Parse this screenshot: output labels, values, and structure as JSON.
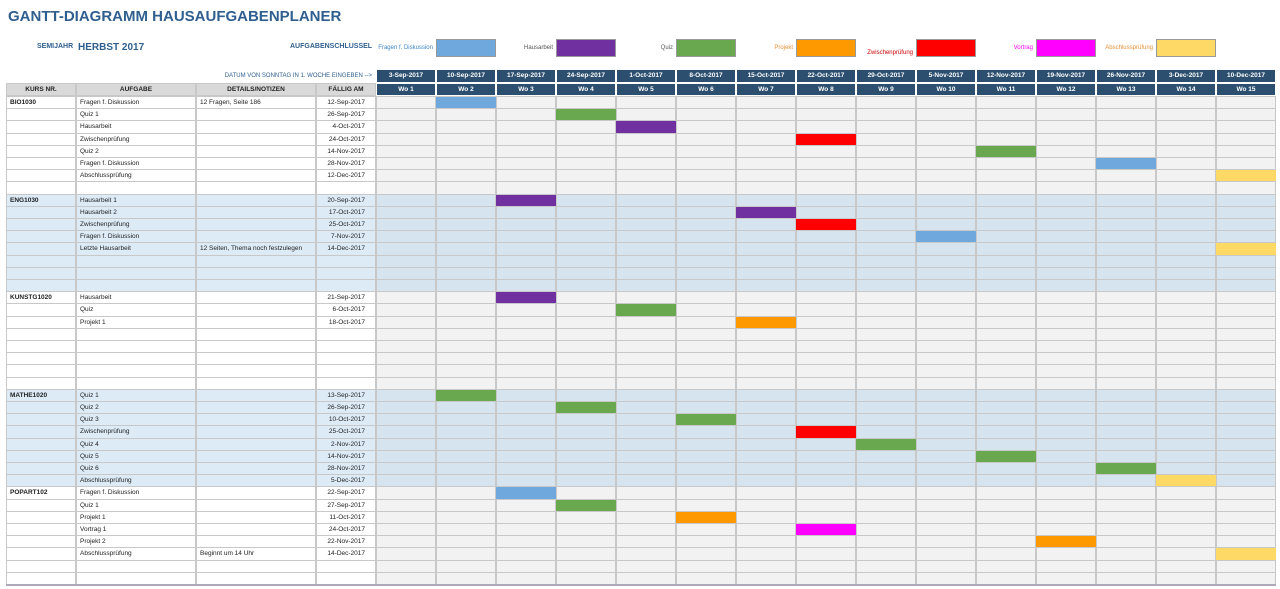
{
  "header": {
    "title": "GANTT-DIAGRAMM HAUSAUFGABENPLANER",
    "semester_label": "SEMIJAHR",
    "semester": "HERBST 2017",
    "key_label": "AUFGABENSCHLÜSSEL"
  },
  "legend": [
    {
      "label": "Fragen f. Diskussion",
      "color": "#6fa8dc",
      "text_color": "#3d85c6"
    },
    {
      "label": "Hausarbeit",
      "color": "#7030a0",
      "text_color": "#555555"
    },
    {
      "label": "Quiz",
      "color": "#6aa84f",
      "text_color": "#555555"
    },
    {
      "label": "Projekt",
      "color": "#ff9900",
      "text_color": "#e69138"
    },
    {
      "label": "Zwischenprüfung",
      "color": "#ff0000",
      "text_color": "#cc0000"
    },
    {
      "label": "Vortrag",
      "color": "#ff00ff",
      "text_color": "#ff00ff"
    },
    {
      "label": "Abschlussprüfung",
      "color": "#ffd966",
      "text_color": "#e69138"
    }
  ],
  "table": {
    "date_hint": "DATUM VON SONNTAG IN 1. WOCHE EINGEBEN -->",
    "columns": [
      "KURS NR.",
      "AUFGABE",
      "DETAILS/NOTIZEN",
      "FÄLLIG AM"
    ],
    "week_dates": [
      "3-Sep-2017",
      "10-Sep-2017",
      "17-Sep-2017",
      "24-Sep-2017",
      "1-Oct-2017",
      "8-Oct-2017",
      "15-Oct-2017",
      "22-Oct-2017",
      "29-Oct-2017",
      "5-Nov-2017",
      "12-Nov-2017",
      "19-Nov-2017",
      "26-Nov-2017",
      "3-Dec-2017",
      "10-Dec-2017"
    ],
    "week_labels": [
      "Wo 1",
      "Wo 2",
      "Wo 3",
      "Wo 4",
      "Wo 5",
      "Wo 6",
      "Wo 7",
      "Wo 8",
      "Wo 9",
      "Wo 10",
      "Wo 11",
      "Wo 12",
      "Wo 13",
      "Wo 14",
      "Wo 15"
    ],
    "courses": [
      {
        "code": "BIO1030",
        "tasks": [
          {
            "task": "Fragen f. Diskussion",
            "details": "12 Fragen, Seite 186",
            "due": "12-Sep-2017",
            "week": 2,
            "type": 0
          },
          {
            "task": "Quiz 1",
            "due": "26-Sep-2017",
            "week": 4,
            "type": 2
          },
          {
            "task": "Hausarbeit",
            "due": "4-Oct-2017",
            "week": 5,
            "type": 1
          },
          {
            "task": "Zwischenprüfung",
            "due": "24-Oct-2017",
            "week": 8,
            "type": 4
          },
          {
            "task": "Quiz 2",
            "due": "14-Nov-2017",
            "week": 11,
            "type": 2
          },
          {
            "task": "Fragen f. Diskussion",
            "due": "28-Nov-2017",
            "week": 13,
            "type": 0
          },
          {
            "task": "Abschlussprüfung",
            "due": "12-Dec-2017",
            "week": 15,
            "type": 6
          }
        ]
      },
      {
        "code": "ENG1030",
        "tasks": [
          {
            "task": "Hausarbeit 1",
            "due": "20-Sep-2017",
            "week": 3,
            "type": 1
          },
          {
            "task": "Hausarbeit 2",
            "due": "17-Oct-2017",
            "week": 7,
            "type": 1
          },
          {
            "task": "Zwischenprüfung",
            "due": "25-Oct-2017",
            "week": 8,
            "type": 4
          },
          {
            "task": "Fragen f. Diskussion",
            "due": "7-Nov-2017",
            "week": 10,
            "type": 0
          },
          {
            "task": "Letzte Hausarbeit",
            "details": "12 Seiten, Thema noch festzulegen",
            "due": "14-Dec-2017",
            "week": 15,
            "type": 6
          }
        ]
      },
      {
        "code": "KUNSTG1020",
        "tasks": [
          {
            "task": "Hausarbeit",
            "due": "21-Sep-2017",
            "week": 3,
            "type": 1
          },
          {
            "task": "Quiz",
            "due": "6-Oct-2017",
            "week": 5,
            "type": 2
          },
          {
            "task": "Projekt 1",
            "due": "18-Oct-2017",
            "week": 7,
            "type": 3
          }
        ]
      },
      {
        "code": "MATHE1020",
        "tasks": [
          {
            "task": "Quiz 1",
            "due": "13-Sep-2017",
            "week": 2,
            "type": 2
          },
          {
            "task": "Quiz 2",
            "due": "26-Sep-2017",
            "week": 4,
            "type": 2
          },
          {
            "task": "Quiz 3",
            "due": "10-Oct-2017",
            "week": 6,
            "type": 2
          },
          {
            "task": "Zwischenprüfung",
            "due": "25-Oct-2017",
            "week": 8,
            "type": 4
          },
          {
            "task": "Quiz 4",
            "due": "2-Nov-2017",
            "week": 9,
            "type": 2
          },
          {
            "task": "Quiz 5",
            "due": "14-Nov-2017",
            "week": 11,
            "type": 2
          },
          {
            "task": "Quiz 6",
            "due": "28-Nov-2017",
            "week": 13,
            "type": 2
          },
          {
            "task": "Abschlussprüfung",
            "due": "5-Dec-2017",
            "week": 14,
            "type": 6
          }
        ]
      },
      {
        "code": "POPART102",
        "tasks": [
          {
            "task": "Fragen f. Diskussion",
            "due": "22-Sep-2017",
            "week": 3,
            "type": 0
          },
          {
            "task": "Quiz 1",
            "due": "27-Sep-2017",
            "week": 4,
            "type": 2
          },
          {
            "task": "Projekt 1",
            "due": "11-Oct-2017",
            "week": 6,
            "type": 3
          },
          {
            "task": "Vortrag 1",
            "due": "24-Oct-2017",
            "week": 8,
            "type": 5
          },
          {
            "task": "Projekt 2",
            "due": "22-Nov-2017",
            "week": 12,
            "type": 3
          },
          {
            "task": "Abschlussprüfung",
            "details": "Beginnt um 14 Uhr",
            "due": "14-Dec-2017",
            "week": 15,
            "type": 6
          }
        ]
      }
    ]
  }
}
